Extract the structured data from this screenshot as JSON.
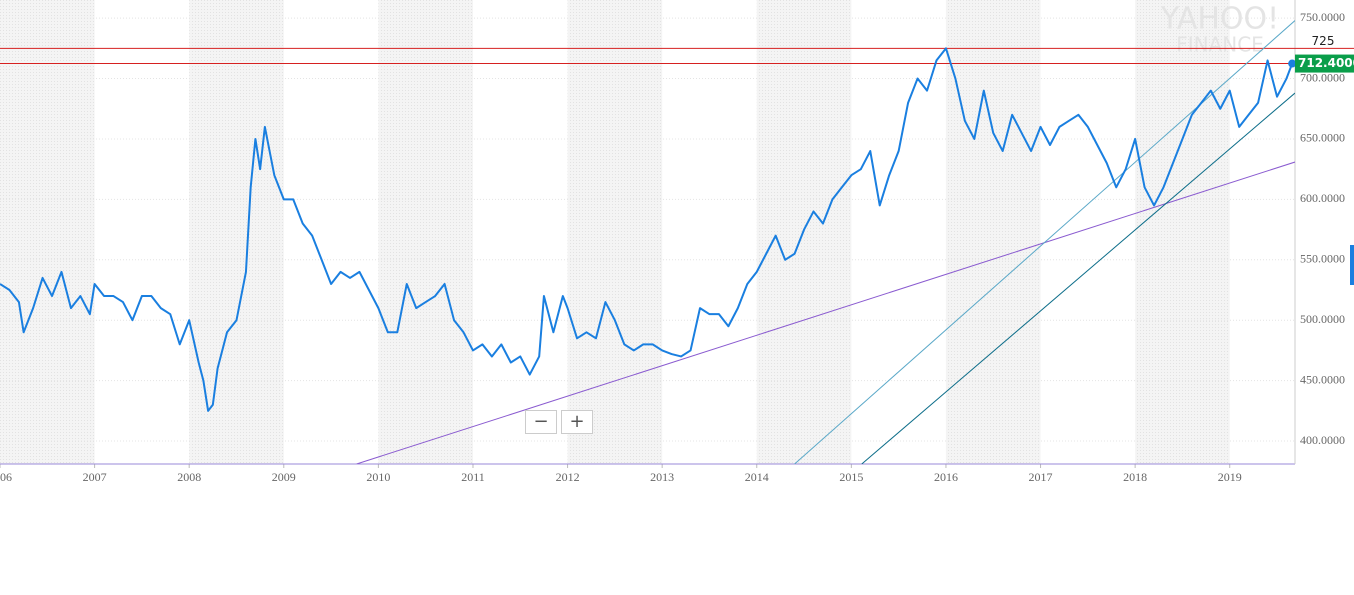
{
  "chart_data": {
    "type": "line",
    "watermark": [
      "YAHOO!",
      "FINANCE"
    ],
    "xlim": [
      2006.0,
      2019.69
    ],
    "ylim": [
      381,
      765
    ],
    "xticks": [
      {
        "value": 2006,
        "label": "06"
      },
      2007,
      2008,
      2009,
      2010,
      2011,
      2012,
      2013,
      2014,
      2015,
      2016,
      2017,
      2018,
      2019
    ],
    "yticks": [
      {
        "value": 400,
        "label": "400.0000"
      },
      {
        "value": 450,
        "label": "450.0000"
      },
      {
        "value": 500,
        "label": "500.0000"
      },
      {
        "value": 550,
        "label": "550.0000"
      },
      {
        "value": 600,
        "label": "600.0000"
      },
      {
        "value": 650,
        "label": "650.0000"
      },
      {
        "value": 700,
        "label": "700.0000"
      },
      {
        "value": 750,
        "label": "750.0000"
      }
    ],
    "grid": true,
    "series": [
      {
        "color": "#1a7fe0",
        "x": [
          2006.0,
          2006.1,
          2006.2,
          2006.25,
          2006.35,
          2006.45,
          2006.55,
          2006.65,
          2006.75,
          2006.85,
          2006.95,
          2007.0,
          2007.1,
          2007.2,
          2007.3,
          2007.4,
          2007.5,
          2007.6,
          2007.7,
          2007.8,
          2007.9,
          2008.0,
          2008.1,
          2008.15,
          2008.2,
          2008.25,
          2008.3,
          2008.4,
          2008.5,
          2008.6,
          2008.65,
          2008.7,
          2008.75,
          2008.8,
          2008.85,
          2008.9,
          2009.0,
          2009.1,
          2009.2,
          2009.3,
          2009.4,
          2009.5,
          2009.6,
          2009.7,
          2009.8,
          2009.9,
          2010.0,
          2010.1,
          2010.2,
          2010.3,
          2010.4,
          2010.5,
          2010.6,
          2010.7,
          2010.8,
          2010.9,
          2011.0,
          2011.1,
          2011.2,
          2011.3,
          2011.4,
          2011.5,
          2011.6,
          2011.7,
          2011.75,
          2011.85,
          2011.95,
          2012.0,
          2012.1,
          2012.2,
          2012.3,
          2012.4,
          2012.5,
          2012.6,
          2012.7,
          2012.8,
          2012.9,
          2013.0,
          2013.1,
          2013.2,
          2013.3,
          2013.4,
          2013.5,
          2013.6,
          2013.7,
          2013.8,
          2013.9,
          2014.0,
          2014.1,
          2014.2,
          2014.3,
          2014.4,
          2014.5,
          2014.6,
          2014.7,
          2014.8,
          2014.9,
          2015.0,
          2015.1,
          2015.2,
          2015.3,
          2015.4,
          2015.5,
          2015.6,
          2015.7,
          2015.8,
          2015.9,
          2016.0,
          2016.1,
          2016.2,
          2016.3,
          2016.4,
          2016.5,
          2016.6,
          2016.7,
          2016.8,
          2016.9,
          2017.0,
          2017.1,
          2017.2,
          2017.3,
          2017.4,
          2017.5,
          2017.6,
          2017.7,
          2017.8,
          2017.9,
          2018.0,
          2018.1,
          2018.2,
          2018.3,
          2018.4,
          2018.5,
          2018.6,
          2018.7,
          2018.8,
          2018.9,
          2019.0,
          2019.1,
          2019.2,
          2019.3,
          2019.4,
          2019.5,
          2019.6,
          2019.66
        ],
        "values": [
          530,
          525,
          515,
          490,
          510,
          535,
          520,
          540,
          510,
          520,
          505,
          530,
          520,
          520,
          515,
          500,
          520,
          520,
          510,
          505,
          480,
          500,
          465,
          450,
          425,
          430,
          460,
          490,
          500,
          540,
          610,
          650,
          625,
          660,
          640,
          620,
          600,
          600,
          580,
          570,
          550,
          530,
          540,
          535,
          540,
          525,
          510,
          490,
          490,
          530,
          510,
          515,
          520,
          530,
          500,
          490,
          475,
          480,
          470,
          480,
          465,
          470,
          455,
          470,
          520,
          490,
          520,
          510,
          485,
          490,
          485,
          515,
          500,
          480,
          475,
          480,
          480,
          475,
          472,
          470,
          475,
          510,
          505,
          505,
          495,
          510,
          530,
          540,
          555,
          570,
          550,
          555,
          575,
          590,
          580,
          600,
          610,
          620,
          625,
          640,
          595,
          620,
          640,
          680,
          700,
          690,
          715,
          725,
          700,
          665,
          650,
          690,
          655,
          640,
          670,
          655,
          640,
          660,
          645,
          660,
          665,
          670,
          660,
          645,
          630,
          610,
          625,
          650,
          610,
          595,
          610,
          630,
          650,
          670,
          680,
          690,
          675,
          690,
          660,
          670,
          680,
          715,
          685,
          700,
          712.4
        ]
      }
    ],
    "last_price": {
      "value": 712.4,
      "label": "712.4000",
      "color": "#0a9e4a"
    },
    "hlines": [
      {
        "value": 725,
        "label": "725",
        "color": "#d62020"
      },
      {
        "value": 712.4,
        "color": "#d62020"
      }
    ],
    "trendlines": [
      {
        "color": "#8a5bd0",
        "x": [
          2009.77,
          2019.69
        ],
        "values": [
          381,
          630.9
        ]
      },
      {
        "color": "#5aa8c8",
        "x": [
          2014.4,
          2019.69
        ],
        "values": [
          381,
          748
        ]
      },
      {
        "color": "#0e6e8a",
        "x": [
          2015.11,
          2019.69
        ],
        "values": [
          381,
          688
        ]
      }
    ]
  }
}
